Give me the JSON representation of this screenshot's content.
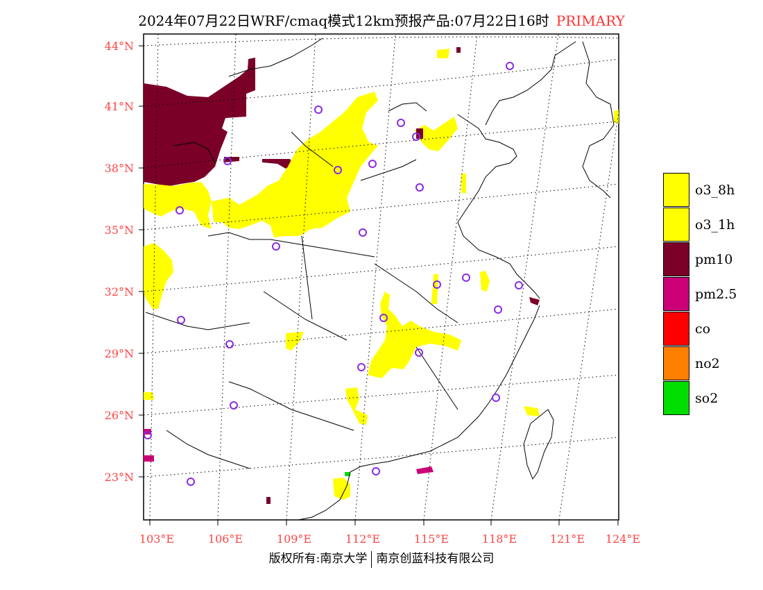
{
  "header": {
    "title": "2024年07月22日WRF/cmaq模式12km预报产品:07月22日16时",
    "run_type": "PRIMARY",
    "run_type_color": "#ff3333"
  },
  "map": {
    "region": "Central and Eastern China",
    "lat_ticks": [
      "44°N",
      "41°N",
      "38°N",
      "35°N",
      "32°N",
      "29°N",
      "26°N",
      "23°N"
    ],
    "lon_ticks": [
      "103°E",
      "106°E",
      "109°E",
      "112°E",
      "115°E",
      "118°E",
      "121°E",
      "124°E"
    ],
    "graticule": "dotted",
    "station_marker": "purple-circle",
    "station_color": "#8a2be2"
  },
  "legend": {
    "items": [
      {
        "label": "o3_8h",
        "color": "#ffff00"
      },
      {
        "label": "o3_1h",
        "color": "#ffff00"
      },
      {
        "label": "pm10",
        "color": "#7a0028"
      },
      {
        "label": "pm2.5",
        "color": "#cc0077"
      },
      {
        "label": "co",
        "color": "#ff0000"
      },
      {
        "label": "no2",
        "color": "#ff7f00"
      },
      {
        "label": "so2",
        "color": "#00dd00"
      }
    ]
  },
  "footer": {
    "left": "版权所有:南京大学",
    "right": "南京创蓝科技有限公司"
  }
}
